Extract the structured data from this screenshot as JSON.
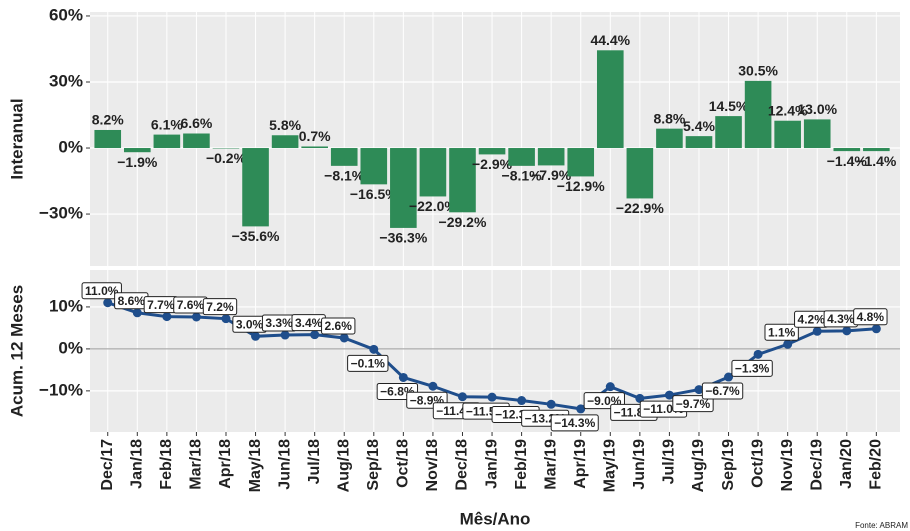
{
  "chart_data": [
    {
      "type": "bar",
      "ylabel": "Interanual",
      "color": "#2e8b57",
      "values": [
        8.2,
        -1.9,
        6.1,
        6.6,
        -0.2,
        -35.6,
        5.8,
        0.7,
        -8.1,
        -16.5,
        -36.3,
        -22.0,
        -29.2,
        -2.9,
        -8.1,
        -7.9,
        -12.9,
        44.4,
        -22.9,
        8.8,
        5.4,
        14.5,
        30.5,
        12.4,
        13.0,
        -1.4,
        -1.4
      ],
      "value_labels": [
        "8.2%",
        "−1.9%",
        "6.1%",
        "6.6%",
        "−0.2%",
        "−35.6%",
        "5.8%",
        "0.7%",
        "−8.1%",
        "−16.5%",
        "−36.3%",
        "−22.0%",
        "−29.2%",
        "−2.9%",
        "−8.1%",
        "−7.9%",
        "−12.9%",
        "44.4%",
        "−22.9%",
        "8.8%",
        "5.4%",
        "14.5%",
        "30.5%",
        "12.4%",
        "13.0%",
        "−1.4%",
        "−1.4%"
      ],
      "ylim": [
        -53.6,
        61.8
      ],
      "yticks": [
        {
          "value": -30,
          "label": "−30%"
        },
        {
          "value": 0,
          "label": "0%"
        },
        {
          "value": 30,
          "label": "30%"
        },
        {
          "value": 60,
          "label": "60%"
        }
      ]
    },
    {
      "type": "line",
      "ylabel": "Acum. 12 Meses",
      "xlabel": "Mês/Ano",
      "color": "#1f4e8c",
      "categories": [
        "Dec/17",
        "Jan/18",
        "Feb/18",
        "Mar/18",
        "Apr/18",
        "May/18",
        "Jun/18",
        "Jul/18",
        "Aug/18",
        "Sep/18",
        "Oct/18",
        "Nov/18",
        "Dec/18",
        "Jan/19",
        "Feb/19",
        "Mar/19",
        "Apr/19",
        "May/19",
        "Jun/19",
        "Jul/19",
        "Aug/19",
        "Sep/19",
        "Oct/19",
        "Nov/19",
        "Dec/19",
        "Jan/20",
        "Feb/20"
      ],
      "values": [
        11.0,
        8.6,
        7.7,
        7.6,
        7.2,
        3.0,
        3.3,
        3.4,
        2.6,
        -0.1,
        -6.8,
        -8.9,
        -11.4,
        -11.5,
        -12.3,
        -13.2,
        -14.3,
        -9.0,
        -11.8,
        -11.0,
        -9.7,
        -6.7,
        -1.3,
        1.1,
        4.2,
        4.3,
        4.8
      ],
      "value_labels": [
        "11.0%",
        "8.6%",
        "7.7%",
        "7.6%",
        "7.2%",
        "3.0%",
        "3.3%",
        "3.4%",
        "2.6%",
        "−0.1%",
        "−6.8%",
        "−8.9%",
        "−11.4%",
        "−11.5%",
        "−12.3%",
        "−13.2%",
        "−14.3%",
        "−9.0%",
        "−11.8%",
        "−11.0%",
        "−9.7%",
        "−6.7%",
        "−1.3%",
        "1.1%",
        "4.2%",
        "4.3%",
        "4.8%"
      ],
      "ylim": [
        -19.8,
        18.8
      ],
      "yticks": [
        {
          "value": -10,
          "label": "−10%"
        },
        {
          "value": 0,
          "label": "0%"
        },
        {
          "value": 10,
          "label": "10%"
        }
      ]
    }
  ],
  "caption": "Fonte: ABRAM"
}
